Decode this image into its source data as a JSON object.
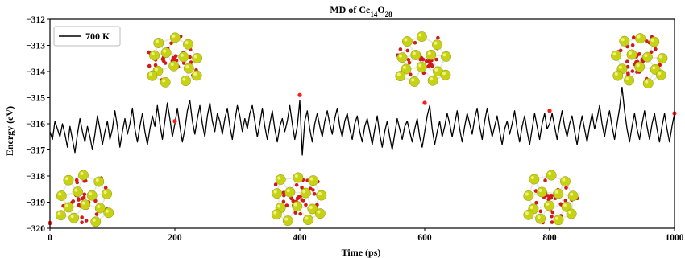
{
  "chart_data": {
    "type": "line",
    "title": "MD of Ce",
    "title_sub1": "14",
    "title_mid": "O",
    "title_sub2": "28",
    "xlabel": "Time (ps)",
    "ylabel": "Energy (eV)",
    "xlim": [
      0,
      1000
    ],
    "ylim": [
      -320,
      -312
    ],
    "xticks": [
      0,
      200,
      400,
      600,
      800,
      1000
    ],
    "yticks": [
      -312,
      -313,
      -314,
      -315,
      -316,
      -317,
      -318,
      -319,
      -320
    ],
    "xtick_labels": [
      "0",
      "200",
      "400",
      "600",
      "800",
      "1000"
    ],
    "ytick_labels": [
      "−312",
      "−313",
      "−314",
      "−315",
      "−316",
      "−317",
      "−318",
      "−319",
      "−320"
    ],
    "legend_position": "top-left",
    "series": [
      {
        "name": "700 K",
        "color": "#000000",
        "x_start": 0,
        "x_step": 4,
        "values": [
          -316.3,
          -316.6,
          -315.9,
          -316.2,
          -316.5,
          -316.0,
          -316.4,
          -316.9,
          -316.1,
          -316.6,
          -317.1,
          -316.4,
          -315.8,
          -316.3,
          -316.7,
          -316.1,
          -316.5,
          -317.0,
          -316.4,
          -315.7,
          -316.2,
          -316.8,
          -316.3,
          -315.9,
          -316.6,
          -316.2,
          -315.5,
          -316.1,
          -316.9,
          -316.3,
          -315.8,
          -316.4,
          -316.0,
          -315.4,
          -316.2,
          -316.7,
          -316.1,
          -315.6,
          -316.3,
          -316.8,
          -316.2,
          -315.7,
          -316.1,
          -315.3,
          -316.0,
          -316.6,
          -315.9,
          -315.2,
          -315.8,
          -316.5,
          -316.0,
          -315.4,
          -316.1,
          -316.7,
          -316.2,
          -315.5,
          -315.1,
          -315.9,
          -316.4,
          -315.8,
          -315.3,
          -316.0,
          -316.5,
          -315.7,
          -315.2,
          -315.9,
          -316.3,
          -315.6,
          -315.9,
          -316.4,
          -315.8,
          -315.4,
          -316.1,
          -316.6,
          -315.9,
          -315.3,
          -315.7,
          -316.3,
          -315.8,
          -316.2,
          -315.6,
          -315.3,
          -315.9,
          -316.5,
          -316.0,
          -315.4,
          -316.1,
          -316.6,
          -316.0,
          -315.5,
          -316.2,
          -316.7,
          -316.1,
          -315.8,
          -316.3,
          -315.9,
          -315.3,
          -316.0,
          -316.6,
          -316.1,
          -315.1,
          -317.2,
          -315.9,
          -315.5,
          -316.2,
          -316.7,
          -316.0,
          -315.6,
          -316.1,
          -316.5,
          -315.9,
          -315.5,
          -316.0,
          -316.4,
          -315.8,
          -315.4,
          -316.1,
          -316.5,
          -315.9,
          -315.6,
          -316.2,
          -316.6,
          -316.0,
          -315.7,
          -316.3,
          -316.7,
          -316.1,
          -315.8,
          -316.3,
          -316.8,
          -316.2,
          -315.7,
          -316.4,
          -316.9,
          -316.3,
          -315.9,
          -316.5,
          -317.0,
          -316.4,
          -315.8,
          -316.2,
          -316.6,
          -316.1,
          -315.9,
          -316.3,
          -316.7,
          -316.2,
          -315.8,
          -316.5,
          -316.9,
          -316.3,
          -315.7,
          -315.3,
          -316.2,
          -316.8,
          -316.3,
          -315.9,
          -316.5,
          -316.1,
          -315.6,
          -316.0,
          -316.5,
          -316.0,
          -315.5,
          -316.2,
          -316.7,
          -316.1,
          -315.6,
          -316.0,
          -316.4,
          -315.8,
          -315.4,
          -316.1,
          -316.6,
          -315.9,
          -315.4,
          -316.0,
          -316.5,
          -316.1,
          -315.7,
          -316.3,
          -316.8,
          -316.2,
          -315.9,
          -316.4,
          -316.0,
          -315.5,
          -316.2,
          -316.7,
          -316.1,
          -315.7,
          -316.3,
          -316.8,
          -316.2,
          -315.6,
          -316.1,
          -316.6,
          -316.0,
          -315.6,
          -316.2,
          -316.0,
          -315.6,
          -316.1,
          -316.6,
          -316.0,
          -315.5,
          -316.1,
          -316.5,
          -316.0,
          -315.7,
          -316.3,
          -316.8,
          -316.2,
          -315.7,
          -316.2,
          -316.7,
          -316.1,
          -315.6,
          -316.2,
          -315.8,
          -315.3,
          -316.0,
          -316.5,
          -315.9,
          -315.5,
          -316.1,
          -316.6,
          -316.0,
          -315.4,
          -314.6,
          -315.5,
          -316.2,
          -316.7,
          -316.1,
          -315.6,
          -316.2,
          -316.6,
          -316.0,
          -315.5,
          -316.1,
          -316.6,
          -316.0,
          -315.6,
          -316.2,
          -316.7,
          -316.1,
          -315.6,
          -316.2,
          -316.7,
          -316.1,
          -315.6
        ]
      }
    ],
    "markers": [
      {
        "x": 0,
        "y": -319.8,
        "color": "#ff1a1a"
      },
      {
        "x": 200,
        "y": -315.9,
        "color": "#ff1a1a"
      },
      {
        "x": 400,
        "y": -314.9,
        "color": "#ff1a1a"
      },
      {
        "x": 600,
        "y": -315.2,
        "color": "#ff1a1a"
      },
      {
        "x": 800,
        "y": -315.5,
        "color": "#ff1a1a"
      },
      {
        "x": 1000,
        "y": -315.6,
        "color": "#ff1a1a"
      }
    ],
    "structure_images": [
      {
        "name": "structure-0ps"
      },
      {
        "name": "structure-200ps"
      },
      {
        "name": "structure-400ps"
      },
      {
        "name": "structure-600ps"
      },
      {
        "name": "structure-800ps"
      },
      {
        "name": "structure-1000ps"
      }
    ],
    "colors": {
      "cerium": "#c8d214",
      "oxygen": "#d21a1a",
      "bond": "#e8e8e8"
    }
  }
}
